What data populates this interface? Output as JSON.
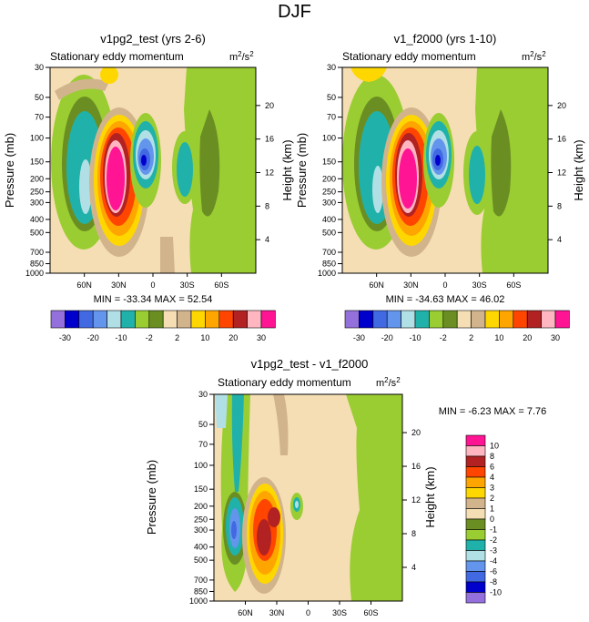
{
  "page": {
    "title": "DJF"
  },
  "chart_data": [
    {
      "type": "heatmap",
      "id": "p1",
      "title": "v1pg2_test (yrs 2-6)",
      "subtitle": "Stationary eddy momentum",
      "units": "m²/s²",
      "units_base": "m",
      "units_num": "2",
      "units_div": "/s",
      "units_den": "2",
      "ylabel": "Pressure (mb)",
      "y2label": "Height (km)",
      "xticks": [
        "60N",
        "30N",
        "0",
        "30S",
        "60S"
      ],
      "yticks": [
        "30",
        "50",
        "70",
        "100",
        "150",
        "200",
        "250",
        "300",
        "400",
        "500",
        "700",
        "850",
        "1000"
      ],
      "y2ticks": [
        "20",
        "16",
        "12",
        "8",
        "4"
      ],
      "stats": "MIN = -33.34  MAX =  52.54",
      "min": -33.34,
      "max": 52.54
    },
    {
      "type": "heatmap",
      "id": "p2",
      "title": "v1_f2000 (yrs 1-10)",
      "subtitle": "Stationary eddy momentum",
      "units": "m²/s²",
      "units_base": "m",
      "units_num": "2",
      "units_div": "/s",
      "units_den": "2",
      "ylabel": "Pressure (mb)",
      "y2label": "Height (km)",
      "xticks": [
        "60N",
        "30N",
        "0",
        "30S",
        "60S"
      ],
      "yticks": [
        "30",
        "50",
        "70",
        "100",
        "150",
        "200",
        "250",
        "300",
        "400",
        "500",
        "700",
        "850",
        "1000"
      ],
      "y2ticks": [
        "20",
        "16",
        "12",
        "8",
        "4"
      ],
      "stats": "MIN = -34.63  MAX =  46.02",
      "min": -34.63,
      "max": 46.02
    },
    {
      "type": "heatmap",
      "id": "p3",
      "title": "v1pg2_test - v1_f2000",
      "subtitle": "Stationary eddy momentum",
      "units": "m²/s²",
      "units_base": "m",
      "units_num": "2",
      "units_div": "/s",
      "units_den": "2",
      "ylabel": "Pressure (mb)",
      "y2label": "Height (km)",
      "xticks": [
        "60N",
        "30N",
        "0",
        "30S",
        "60S"
      ],
      "yticks": [
        "30",
        "50",
        "70",
        "100",
        "150",
        "200",
        "250",
        "300",
        "400",
        "500",
        "700",
        "850",
        "1000"
      ],
      "y2ticks": [
        "20",
        "16",
        "12",
        "8",
        "4"
      ],
      "stats": "MIN =  -6.23  MAX =   7.76",
      "min": -6.23,
      "max": 7.76
    }
  ],
  "colorbar_main": {
    "colors": [
      "#9370db",
      "#0000cd",
      "#4169e1",
      "#6495ed",
      "#b0e0e6",
      "#20b2aa",
      "#9acd32",
      "#6b8e23",
      "#f5deb3",
      "#d2b48c",
      "#ffd700",
      "#ffa500",
      "#ff4500",
      "#b22222",
      "#ffb6c1",
      "#ff1493"
    ],
    "labels": [
      "-30",
      "-20",
      "-10",
      "-2",
      "2",
      "10",
      "20",
      "30"
    ]
  },
  "colorbar_diff": {
    "colors": [
      "#ff1493",
      "#ffb6c1",
      "#b22222",
      "#ff4500",
      "#ffa500",
      "#ffd700",
      "#d2b48c",
      "#f5deb3",
      "#6b8e23",
      "#9acd32",
      "#20b2aa",
      "#b0e0e6",
      "#6495ed",
      "#4169e1",
      "#0000cd",
      "#9370db"
    ],
    "labels": [
      "10",
      "8",
      "6",
      "4",
      "3",
      "2",
      "1",
      "0",
      "-1",
      "-2",
      "-3",
      "-4",
      "-6",
      "-8",
      "-10"
    ]
  }
}
